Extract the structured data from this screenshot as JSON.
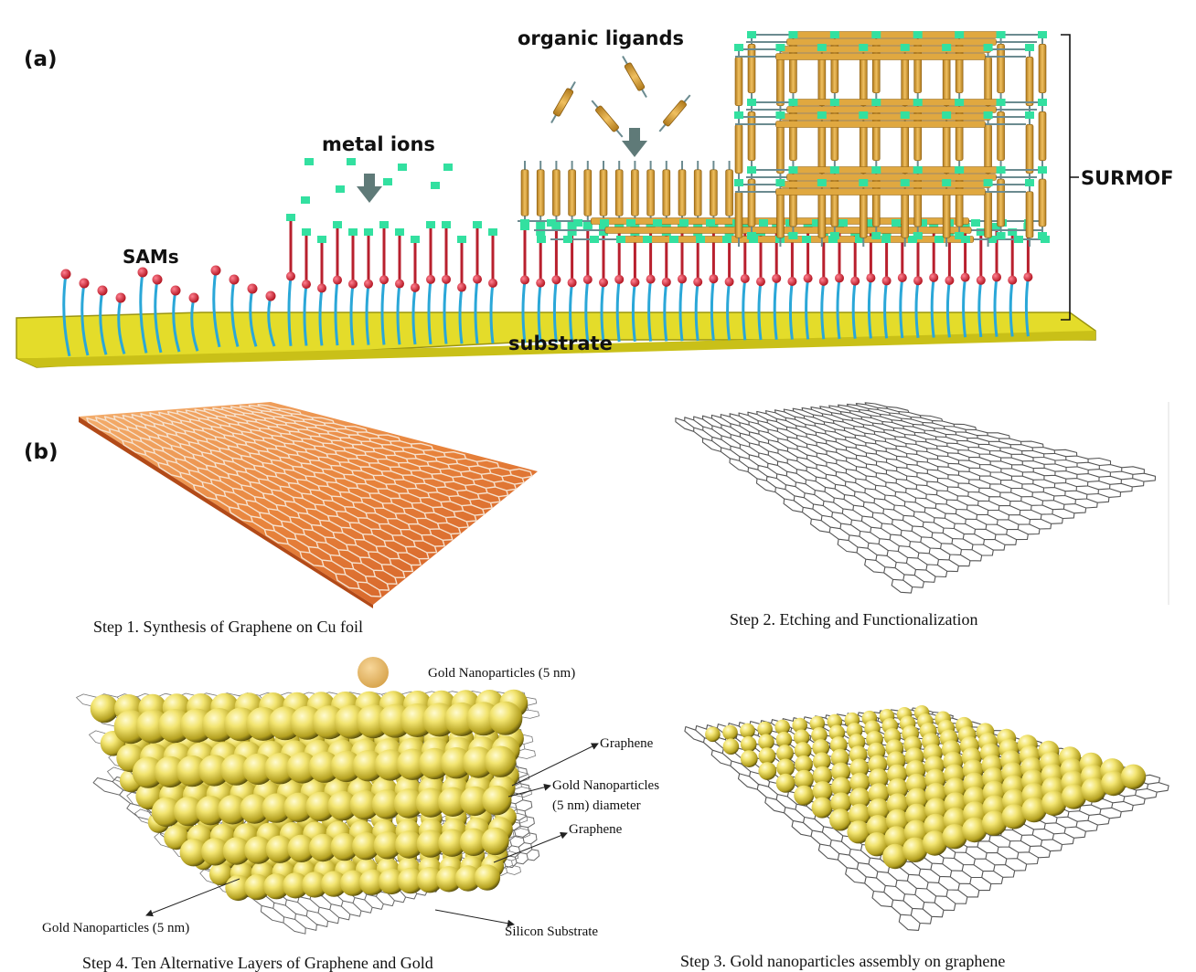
{
  "panel_a": {
    "label": "(a)",
    "sams": "SAMs",
    "metal_ions": "metal ions",
    "organic_ligands": "organic ligands",
    "surmof": "SURMOF",
    "substrate": "substrate"
  },
  "panel_b": {
    "label": "(b)",
    "step1": "Step 1. Synthesis of Graphene on Cu foil",
    "step2": "Step 2. Etching and Functionalization",
    "step3": "Step 3. Gold nanoparticles assembly on graphene",
    "step4": "Step 4. Ten Alternative Layers of Graphene and Gold",
    "legend_gold": "Gold Nanoparticles (5 nm)",
    "callout_graphene_top": "Graphene",
    "callout_gold_line1": "Gold Nanoparticles",
    "callout_gold_line2": "(5 nm) diameter",
    "callout_graphene_mid": "Graphene",
    "callout_gold_bottom": "Gold Nanoparticles (5 nm)",
    "callout_silicon": "Silicon Substrate"
  },
  "colors": {
    "substrate": "#e4dc2a",
    "chain": "#2aa7d8",
    "linker": "#b8202e",
    "head": "#d81b32",
    "ion": "#33e0a0",
    "ligand": "#d4a23a",
    "arrow": "#5f7a78",
    "copper_light": "#f0a060",
    "copper_dark": "#d2622a",
    "gold": "#e8d84a"
  }
}
